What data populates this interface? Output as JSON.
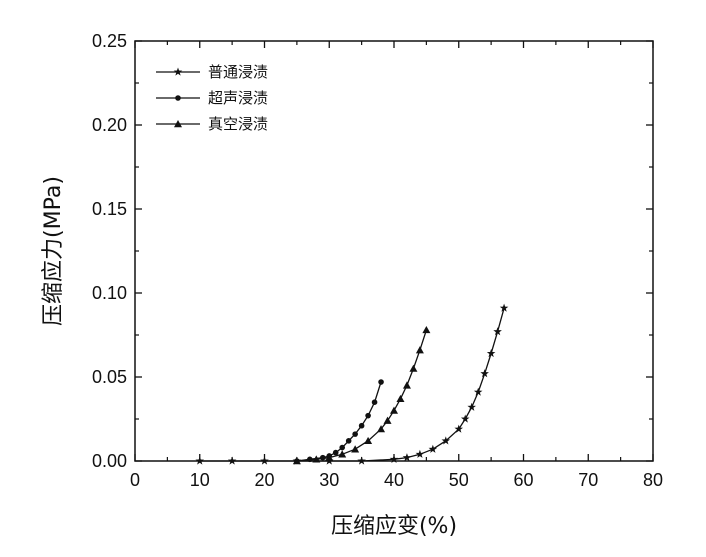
{
  "chart_data": {
    "type": "line",
    "xlabel": "压缩应变(%)",
    "ylabel": "压缩应力(MPa)",
    "xlim": [
      0,
      80
    ],
    "ylim": [
      0,
      0.25
    ],
    "xticks": [
      "0",
      "10",
      "20",
      "30",
      "40",
      "50",
      "60",
      "70",
      "80"
    ],
    "yticks": [
      "0.00",
      "0.05",
      "0.10",
      "0.15",
      "0.20",
      "0.25"
    ],
    "grid": false,
    "legend_position": "top-left",
    "series": [
      {
        "name": "普通浸渍",
        "marker": "star",
        "x": [
          10,
          15,
          20,
          25,
          30,
          35,
          40,
          42,
          44,
          46,
          48,
          50,
          51,
          52,
          53,
          54,
          55,
          56,
          57
        ],
        "y": [
          0,
          0,
          0,
          0,
          0,
          0,
          0.001,
          0.002,
          0.004,
          0.007,
          0.012,
          0.019,
          0.025,
          0.032,
          0.041,
          0.052,
          0.064,
          0.077,
          0.091
        ]
      },
      {
        "name": "超声浸渍",
        "marker": "circle",
        "x": [
          25,
          27,
          29,
          30,
          31,
          32,
          33,
          34,
          35,
          36,
          37,
          38
        ],
        "y": [
          0,
          0.001,
          0.002,
          0.003,
          0.005,
          0.008,
          0.012,
          0.016,
          0.021,
          0.027,
          0.035,
          0.047
        ]
      },
      {
        "name": "真空浸渍",
        "marker": "triangle",
        "x": [
          25,
          28,
          30,
          32,
          34,
          36,
          38,
          39,
          40,
          41,
          42,
          43,
          44,
          45
        ],
        "y": [
          0,
          0.001,
          0.002,
          0.004,
          0.007,
          0.012,
          0.019,
          0.024,
          0.03,
          0.037,
          0.045,
          0.055,
          0.066,
          0.078
        ]
      }
    ]
  }
}
